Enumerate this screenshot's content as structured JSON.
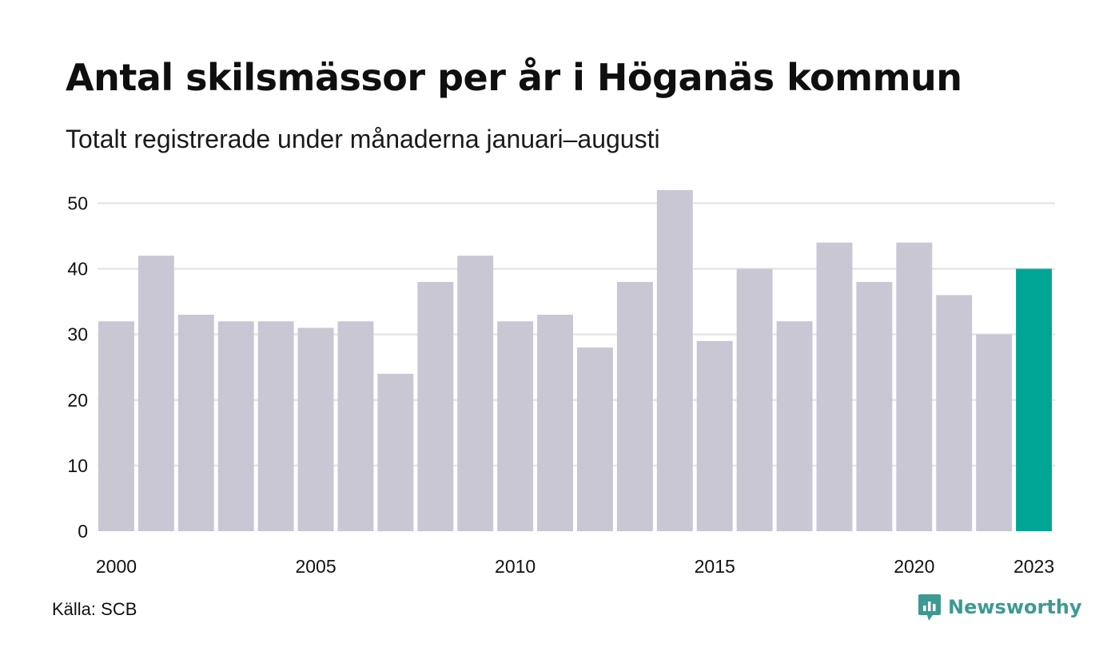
{
  "header": {
    "title": "Antal skilsmässor per år i Höganäs kommun",
    "subtitle": "Totalt registrerade under månaderna januari–augusti"
  },
  "footer": {
    "source": "Källa: SCB",
    "brand": "Newsworthy"
  },
  "colors": {
    "bar": "#c8c7d3",
    "highlight": "#00a596",
    "grid": "#e6e6e6",
    "brand": "#3d9a93"
  },
  "chart_data": {
    "type": "bar",
    "categories": [
      "2000",
      "2001",
      "2002",
      "2003",
      "2004",
      "2005",
      "2006",
      "2007",
      "2008",
      "2009",
      "2010",
      "2011",
      "2012",
      "2013",
      "2014",
      "2015",
      "2016",
      "2017",
      "2018",
      "2019",
      "2020",
      "2021",
      "2022",
      "2023"
    ],
    "values": [
      32,
      42,
      33,
      32,
      32,
      31,
      32,
      24,
      38,
      42,
      32,
      33,
      28,
      38,
      52,
      29,
      40,
      32,
      44,
      38,
      44,
      36,
      30,
      40
    ],
    "highlight_category": "2023",
    "ylim": [
      0,
      52
    ],
    "yticks": [
      0,
      10,
      20,
      30,
      40,
      50
    ],
    "xtick_labels": [
      "2000",
      "2005",
      "2010",
      "2015",
      "2020",
      "2023"
    ],
    "grid": true,
    "legend": "none"
  }
}
